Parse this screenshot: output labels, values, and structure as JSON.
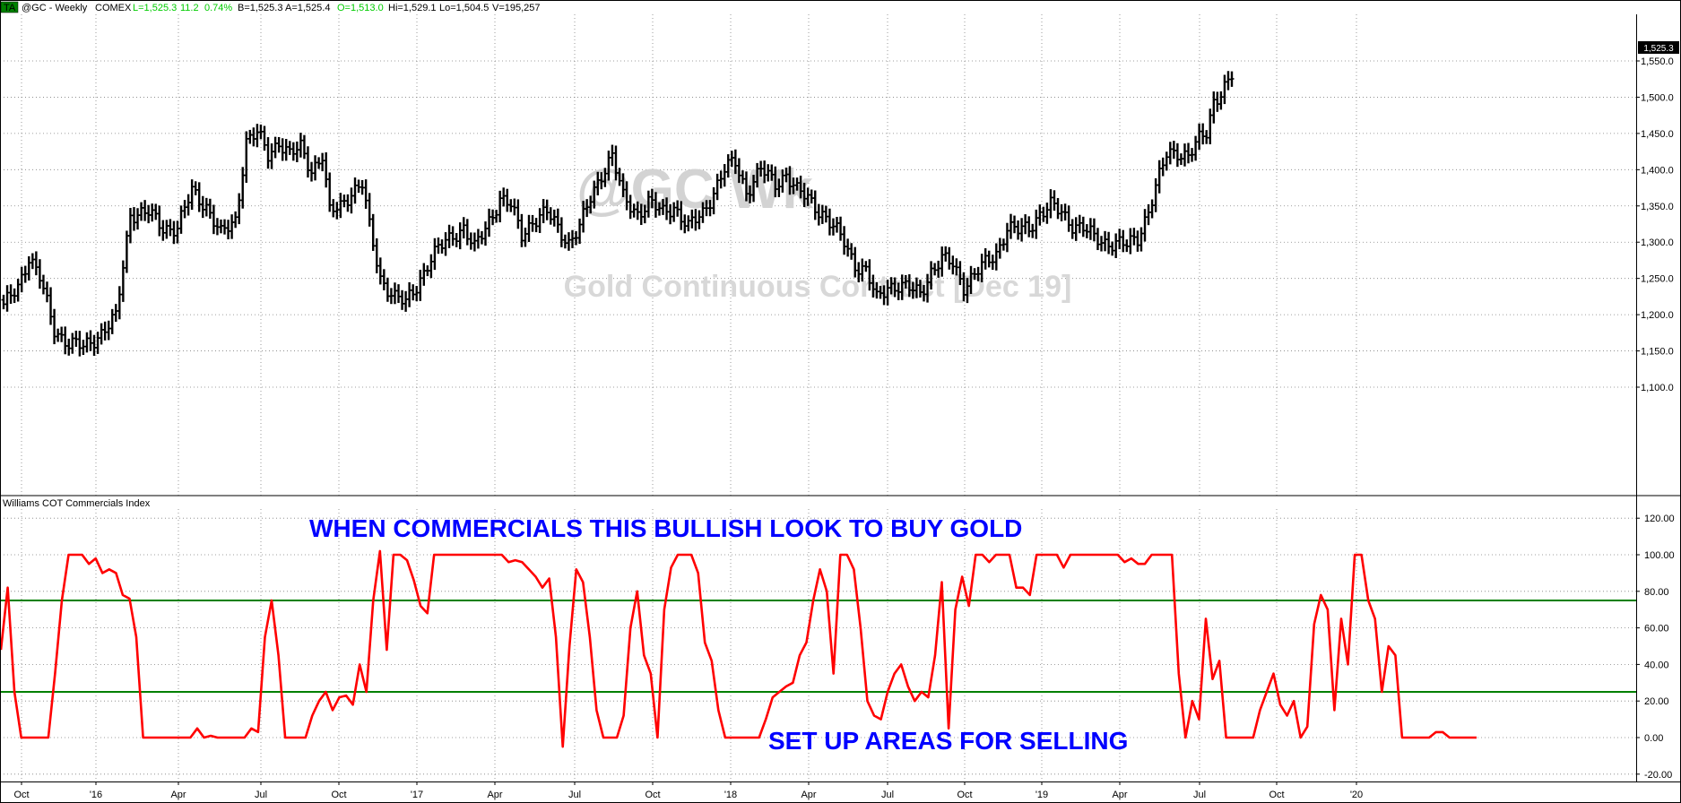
{
  "header": {
    "badge": "TA",
    "symbol": "@GC - Weekly",
    "exchange": "COMEX",
    "last": "L=1,525.3",
    "change": "11.2",
    "change_pct": "0.74%",
    "bid": "B=1,525.3",
    "ask": "A=1,525.4",
    "open": "O=1,513.0",
    "high": "Hi=1,529.1",
    "low": "Lo=1,504.5",
    "volume": "V=195,257"
  },
  "watermark": {
    "symbol": "@GC Wk",
    "description": "Gold Continuous Contract [Dec 19]"
  },
  "indicator": {
    "name": "Williams COT Commercials Index",
    "annotation_top": "WHEN COMMERCIALS THIS BULLISH LOOK TO BUY GOLD",
    "annotation_bottom": "SET UP AREAS FOR SELLING"
  },
  "price_tag": "1,525.3",
  "colors": {
    "price_bars": "#000000",
    "cot_line": "#ff0000",
    "threshold_lines": "#008000",
    "annotation": "#0000ff",
    "change_text": "#00cc00",
    "badge": "#008000"
  },
  "chart_data": [
    {
      "type": "ohlc",
      "title": "@GC - Weekly",
      "timeframe": "weekly, Sep 2015 - Aug 2019",
      "x_tick_labels": [
        "Oct",
        "'16",
        "Apr",
        "Jul",
        "Oct",
        "'17",
        "Apr",
        "Jul",
        "Oct",
        "'18",
        "Apr",
        "Jul",
        "Oct",
        "'19",
        "Apr",
        "Jul",
        "Oct",
        "'20"
      ],
      "y_tick_labels": [
        "1,100.0",
        "1,150.0",
        "1,200.0",
        "1,250.0",
        "1,300.0",
        "1,350.0",
        "1,400.0",
        "1,450.0",
        "1,500.0",
        "1,550.0"
      ],
      "ylim": [
        1080,
        1570
      ],
      "grid": true,
      "last_price": 1525.3,
      "anchors": [
        [
          0,
          1210
        ],
        [
          4,
          1240
        ],
        [
          7,
          1280
        ],
        [
          10,
          1250
        ],
        [
          14,
          1180
        ],
        [
          18,
          1160
        ],
        [
          22,
          1155
        ],
        [
          27,
          1175
        ],
        [
          31,
          1195
        ],
        [
          35,
          1340
        ],
        [
          40,
          1340
        ],
        [
          44,
          1320
        ],
        [
          48,
          1320
        ],
        [
          52,
          1370
        ],
        [
          56,
          1350
        ],
        [
          60,
          1310
        ],
        [
          64,
          1330
        ],
        [
          67,
          1440
        ],
        [
          70,
          1450
        ],
        [
          73,
          1420
        ],
        [
          76,
          1440
        ],
        [
          79,
          1420
        ],
        [
          82,
          1430
        ],
        [
          85,
          1400
        ],
        [
          88,
          1420
        ],
        [
          90,
          1340
        ],
        [
          93,
          1350
        ],
        [
          96,
          1370
        ],
        [
          99,
          1380
        ],
        [
          101,
          1320
        ],
        [
          104,
          1250
        ],
        [
          108,
          1225
        ],
        [
          111,
          1215
        ],
        [
          114,
          1240
        ],
        [
          117,
          1270
        ],
        [
          120,
          1290
        ],
        [
          124,
          1310
        ],
        [
          127,
          1320
        ],
        [
          130,
          1290
        ],
        [
          134,
          1330
        ],
        [
          137,
          1360
        ],
        [
          140,
          1350
        ],
        [
          143,
          1310
        ],
        [
          146,
          1330
        ],
        [
          150,
          1340
        ],
        [
          153,
          1320
        ],
        [
          156,
          1300
        ],
        [
          159,
          1320
        ],
        [
          162,
          1360
        ],
        [
          165,
          1395
        ],
        [
          168,
          1420
        ],
        [
          171,
          1360
        ],
        [
          175,
          1340
        ],
        [
          178,
          1355
        ],
        [
          182,
          1340
        ],
        [
          185,
          1350
        ],
        [
          189,
          1320
        ],
        [
          193,
          1340
        ],
        [
          196,
          1370
        ],
        [
          199,
          1400
        ],
        [
          202,
          1410
        ],
        [
          205,
          1370
        ],
        [
          209,
          1400
        ],
        [
          213,
          1380
        ],
        [
          216,
          1395
        ],
        [
          219,
          1370
        ],
        [
          222,
          1360
        ],
        [
          226,
          1340
        ],
        [
          229,
          1320
        ],
        [
          232,
          1300
        ],
        [
          235,
          1270
        ],
        [
          238,
          1260
        ],
        [
          241,
          1220
        ],
        [
          244,
          1240
        ],
        [
          247,
          1240
        ],
        [
          250,
          1235
        ],
        [
          253,
          1230
        ],
        [
          256,
          1260
        ],
        [
          259,
          1275
        ],
        [
          262,
          1270
        ],
        [
          265,
          1240
        ],
        [
          268,
          1255
        ],
        [
          271,
          1270
        ],
        [
          274,
          1285
        ],
        [
          277,
          1320
        ],
        [
          280,
          1315
        ],
        [
          283,
          1320
        ],
        [
          286,
          1340
        ],
        [
          289,
          1350
        ],
        [
          292,
          1340
        ],
        [
          295,
          1325
        ],
        [
          298,
          1320
        ],
        [
          301,
          1305
        ],
        [
          304,
          1300
        ],
        [
          307,
          1300
        ],
        [
          310,
          1295
        ],
        [
          313,
          1305
        ],
        [
          316,
          1345
        ],
        [
          318,
          1375
        ],
        [
          321,
          1420
        ],
        [
          324,
          1425
        ],
        [
          327,
          1420
        ],
        [
          330,
          1440
        ],
        [
          332,
          1450
        ],
        [
          334,
          1495
        ],
        [
          337,
          1515
        ],
        [
          339,
          1525.3
        ]
      ]
    },
    {
      "type": "line",
      "title": "Williams COT Commercials Index",
      "y_tick_labels": [
        "-20.00",
        "0.00",
        "20.00",
        "40.00",
        "60.00",
        "80.00",
        "100.00",
        "120.00"
      ],
      "ylim": [
        -25,
        128
      ],
      "thresholds": [
        75,
        25
      ],
      "grid": true,
      "series": [
        {
          "values": [
            48,
            82,
            25,
            0,
            0,
            0,
            0,
            0,
            35,
            75,
            100,
            100,
            100,
            95,
            98,
            90,
            92,
            90,
            78,
            76,
            55,
            0,
            0,
            0,
            0,
            0,
            0,
            0,
            0,
            5,
            0,
            1,
            0,
            0,
            0,
            0,
            0,
            5,
            3,
            55,
            75,
            45,
            0,
            0,
            0,
            0,
            12,
            20,
            25,
            15,
            22,
            23,
            18,
            40,
            25,
            75,
            102,
            48,
            100,
            100,
            97,
            86,
            72,
            68,
            100,
            100,
            100,
            100,
            100,
            100,
            100,
            100,
            100,
            100,
            100,
            96,
            97,
            96,
            92,
            88,
            82,
            87,
            55,
            -5,
            50,
            92,
            85,
            55,
            15,
            0,
            0,
            0,
            12,
            60,
            80,
            45,
            35,
            0,
            70,
            93,
            100,
            100,
            100,
            90,
            52,
            42,
            15,
            0,
            0,
            0,
            0,
            0,
            0,
            10,
            22,
            25,
            28,
            30,
            45,
            52,
            75,
            92,
            80,
            35,
            100,
            100,
            92,
            60,
            20,
            12,
            10,
            25,
            35,
            40,
            28,
            20,
            25,
            22,
            45,
            85,
            5,
            70,
            88,
            72,
            100,
            100,
            96,
            100,
            100,
            100,
            82,
            82,
            78,
            100,
            100,
            100,
            100,
            93,
            100,
            100,
            100,
            100,
            100,
            100,
            100,
            100,
            96,
            98,
            95,
            95,
            100,
            100,
            100,
            100,
            35,
            0,
            20,
            10,
            65,
            32,
            42,
            0,
            0,
            0,
            0,
            0,
            15,
            25,
            35,
            18,
            12,
            20,
            0,
            6,
            62,
            78,
            70,
            15,
            65,
            40,
            100,
            100,
            75,
            65,
            25,
            50,
            45,
            0,
            0,
            0,
            0,
            0,
            3,
            3,
            0,
            0,
            0,
            0,
            0
          ]
        }
      ]
    }
  ]
}
